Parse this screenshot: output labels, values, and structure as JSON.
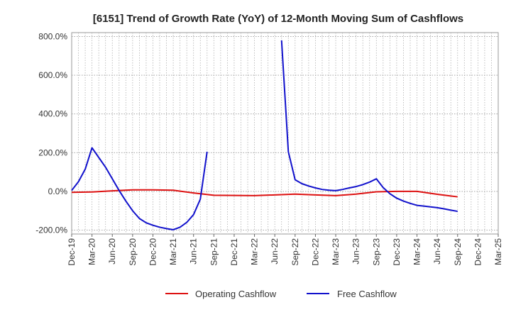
{
  "chart_data": {
    "type": "line",
    "title": "[6151]  Trend of Growth Rate (YoY) of 12-Month Moving Sum of Cashflows",
    "xlabel": "",
    "ylabel": "",
    "ylim": [
      -220,
      820
    ],
    "yticks": [
      {
        "value": 800,
        "label": "800.0%"
      },
      {
        "value": 600,
        "label": "600.0%"
      },
      {
        "value": 400,
        "label": "400.0%"
      },
      {
        "value": 200,
        "label": "200.0%"
      },
      {
        "value": 0,
        "label": "0.0%"
      },
      {
        "value": -200,
        "label": "-200.0%"
      }
    ],
    "xlim": [
      "2019-12",
      "2025-03"
    ],
    "xticks": [
      "Dec-19",
      "Mar-20",
      "Jun-20",
      "Sep-20",
      "Dec-20",
      "Mar-21",
      "Jun-21",
      "Sep-21",
      "Dec-21",
      "Mar-22",
      "Jun-22",
      "Sep-22",
      "Dec-22",
      "Mar-23",
      "Jun-23",
      "Sep-23",
      "Dec-23",
      "Mar-24",
      "Jun-24",
      "Sep-24",
      "Dec-24",
      "Mar-25"
    ],
    "grid": true,
    "legend_position": "bottom",
    "series": [
      {
        "name": "Operating Cashflow",
        "color": "#dd1111",
        "points": [
          [
            "2019-12",
            -5
          ],
          [
            "2020-03",
            -3
          ],
          [
            "2020-06",
            3
          ],
          [
            "2020-09",
            8
          ],
          [
            "2020-12",
            8
          ],
          [
            "2021-03",
            6
          ],
          [
            "2021-06",
            -8
          ],
          [
            "2021-09",
            -20
          ],
          [
            "2021-12",
            -21
          ],
          [
            "2022-03",
            -22
          ],
          [
            "2022-06",
            -18
          ],
          [
            "2022-09",
            -14
          ],
          [
            "2022-12",
            -18
          ],
          [
            "2023-03",
            -22
          ],
          [
            "2023-06",
            -14
          ],
          [
            "2023-09",
            -2
          ],
          [
            "2023-12",
            0
          ],
          [
            "2024-03",
            0
          ],
          [
            "2024-06",
            -15
          ],
          [
            "2024-09",
            -28
          ]
        ]
      },
      {
        "name": "Free Cashflow",
        "color": "#1111cc",
        "segments": [
          [
            [
              "2019-12",
              5
            ],
            [
              "2020-01",
              50
            ],
            [
              "2020-02",
              115
            ],
            [
              "2020-03",
              225
            ],
            [
              "2020-04",
              175
            ],
            [
              "2020-05",
              125
            ],
            [
              "2020-06",
              65
            ],
            [
              "2020-07",
              5
            ],
            [
              "2020-08",
              -50
            ],
            [
              "2020-09",
              -100
            ],
            [
              "2020-10",
              -140
            ],
            [
              "2020-11",
              -162
            ],
            [
              "2020-12",
              -175
            ],
            [
              "2021-01",
              -185
            ],
            [
              "2021-02",
              -192
            ],
            [
              "2021-03",
              -198
            ],
            [
              "2021-04",
              -185
            ],
            [
              "2021-05",
              -160
            ],
            [
              "2021-06",
              -120
            ],
            [
              "2021-07",
              -40
            ],
            [
              "2021-08",
              205
            ]
          ],
          [
            [
              "2022-07",
              780
            ],
            [
              "2022-08",
              205
            ],
            [
              "2022-09",
              60
            ],
            [
              "2022-10",
              40
            ],
            [
              "2022-11",
              28
            ],
            [
              "2022-12",
              18
            ],
            [
              "2023-01",
              10
            ],
            [
              "2023-02",
              6
            ],
            [
              "2023-03",
              4
            ],
            [
              "2023-04",
              10
            ],
            [
              "2023-05",
              18
            ],
            [
              "2023-06",
              25
            ],
            [
              "2023-07",
              35
            ],
            [
              "2023-08",
              48
            ],
            [
              "2023-09",
              65
            ],
            [
              "2023-10",
              20
            ],
            [
              "2023-11",
              -12
            ],
            [
              "2023-12",
              -35
            ],
            [
              "2024-01",
              -50
            ],
            [
              "2024-02",
              -62
            ],
            [
              "2024-03",
              -72
            ],
            [
              "2024-04",
              -76
            ],
            [
              "2024-05",
              -80
            ],
            [
              "2024-06",
              -84
            ],
            [
              "2024-07",
              -90
            ],
            [
              "2024-08",
              -97
            ],
            [
              "2024-09",
              -103
            ]
          ]
        ]
      }
    ]
  }
}
